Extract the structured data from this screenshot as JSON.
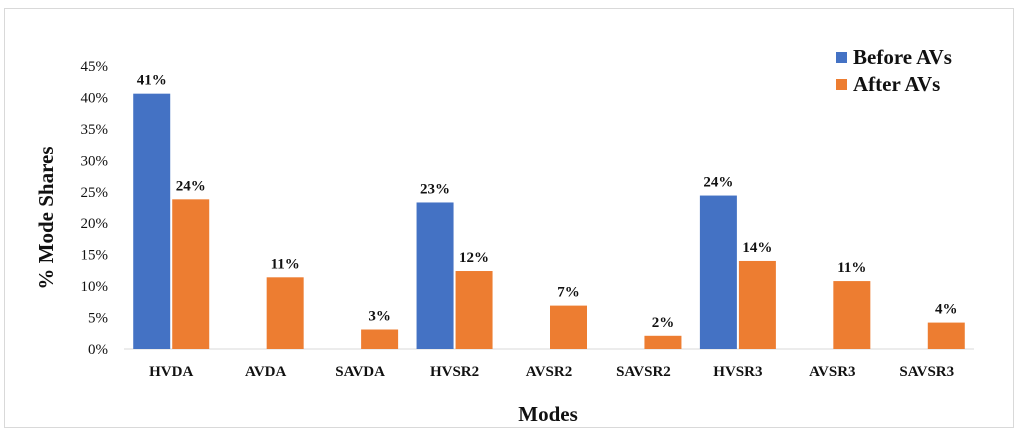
{
  "chart_data": {
    "type": "bar",
    "title": "",
    "xlabel": "Modes",
    "ylabel": "% Mode Shares",
    "ylim": [
      0,
      45
    ],
    "yticks": [
      "0%",
      "5%",
      "10%",
      "15%",
      "20%",
      "25%",
      "30%",
      "35%",
      "40%",
      "45%"
    ],
    "categories": [
      "HVDA",
      "AVDA",
      "SAVDA",
      "HVSR2",
      "AVSR2",
      "SAVSR2",
      "HVSR3",
      "AVSR3",
      "SAVSR3"
    ],
    "series": [
      {
        "name": "Before AVs",
        "color": "#4472c4",
        "values": [
          40.6,
          null,
          null,
          23.3,
          null,
          null,
          24.4,
          null,
          null
        ],
        "labels": [
          "41%",
          "",
          "",
          "23%",
          "",
          "",
          "24%",
          "",
          ""
        ]
      },
      {
        "name": "After AVs",
        "color": "#ed7d31",
        "values": [
          23.8,
          11.4,
          3.1,
          12.4,
          6.9,
          2.1,
          14.0,
          10.8,
          4.2
        ],
        "labels": [
          "24%",
          "11%",
          "3%",
          "12%",
          "7%",
          "2%",
          "14%",
          "11%",
          "4%"
        ]
      }
    ],
    "legend_position": "top-right",
    "grid": false
  }
}
